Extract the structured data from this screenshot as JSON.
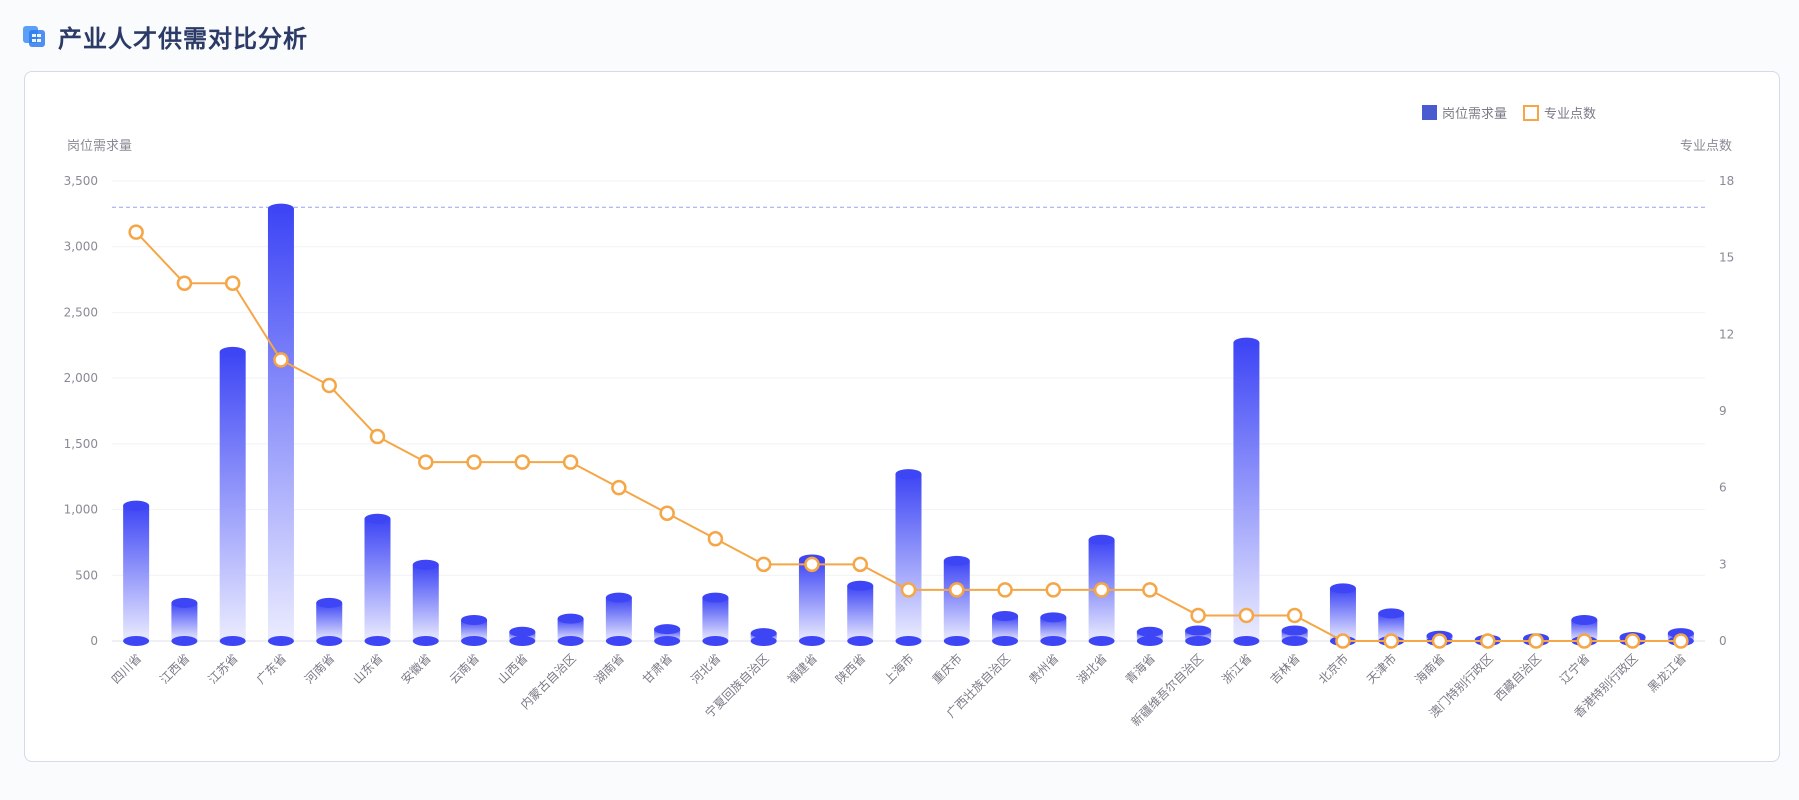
{
  "page": {
    "title": "产业人才供需对比分析"
  },
  "colors": {
    "bar_top": "#3d45f5",
    "bar_bottom": "#ebecff",
    "line": "#f5a646",
    "reference_line": "#9aa0f7",
    "legend_bar": "#4a5bd0"
  },
  "chart_data": {
    "type": "bar",
    "categories": [
      "四川省",
      "江西省",
      "江苏省",
      "广东省",
      "河南省",
      "山东省",
      "安徽省",
      "云南省",
      "山西省",
      "内蒙古自治区",
      "湖南省",
      "甘肃省",
      "河北省",
      "宁夏回族自治区",
      "福建省",
      "陕西省",
      "上海市",
      "重庆市",
      "广西壮族自治区",
      "贵州省",
      "湖北省",
      "青海省",
      "新疆维吾尔自治区",
      "浙江省",
      "吉林省",
      "北京市",
      "天津市",
      "海南省",
      "澳门特别行政区",
      "西藏自治区",
      "辽宁省",
      "香港特别行政区",
      "黑龙江省"
    ],
    "series": [
      {
        "name": "岗位需求量",
        "type": "bar",
        "axis": "left",
        "values": [
          1030,
          290,
          2200,
          3290,
          290,
          930,
          580,
          160,
          70,
          170,
          330,
          90,
          330,
          60,
          620,
          420,
          1270,
          610,
          190,
          180,
          770,
          70,
          80,
          2270,
          80,
          400,
          210,
          40,
          10,
          20,
          160,
          30,
          60
        ]
      },
      {
        "name": "专业点数",
        "type": "line",
        "axis": "right",
        "values": [
          16,
          14,
          14,
          11,
          10,
          8,
          7,
          7,
          7,
          7,
          6,
          5,
          4,
          3,
          3,
          3,
          2,
          2,
          2,
          2,
          2,
          2,
          1,
          1,
          1,
          0,
          0,
          0,
          0,
          0,
          0,
          0,
          0
        ]
      }
    ],
    "y_left": {
      "label": "岗位需求量",
      "min": 0,
      "max": 3500,
      "ticks": [
        "0",
        "500",
        "1,000",
        "1,500",
        "2,000",
        "2,500",
        "3,000",
        "3,500"
      ]
    },
    "y_right": {
      "label": "专业点数",
      "min": 0,
      "max": 18,
      "ticks": [
        "0",
        "3",
        "6",
        "9",
        "12",
        "15",
        "18"
      ]
    },
    "reference_line": {
      "value": 3300,
      "axis": "left",
      "style": "dashed"
    },
    "legend": {
      "position": "top-right",
      "items": [
        "岗位需求量",
        "专业点数"
      ]
    },
    "grid": true
  }
}
